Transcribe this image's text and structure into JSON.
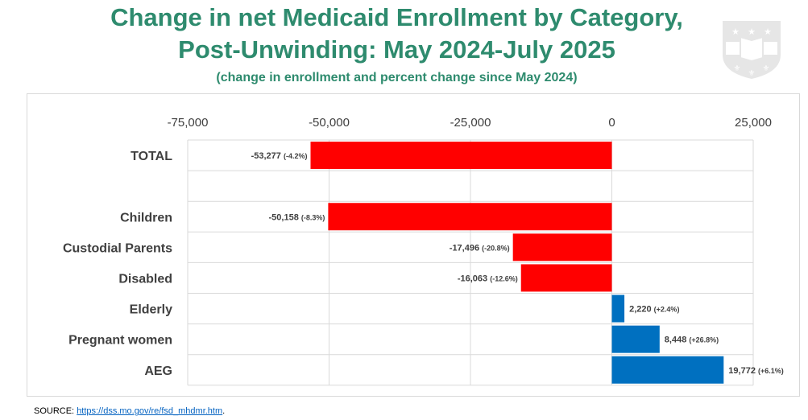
{
  "title_line1": "Change in net Medicaid Enrollment by Category,",
  "title_line2": "Post-Unwinding: May 2024-July 2025",
  "subtitle": "(change in enrollment and percent change since May 2024)",
  "source_label": "SOURCE: ",
  "source_link": "https://dss.mo.gov/re/fsd_mhdmr.htm",
  "source_end": ".",
  "colors": {
    "negative": "#ff0000",
    "positive": "#0070c0",
    "title": "#2e8b6e"
  },
  "chart_data": {
    "type": "bar",
    "orientation": "horizontal",
    "title": "Change in net Medicaid Enrollment by Category, Post-Unwinding: May 2024-July 2025",
    "xlim": [
      -75000,
      25000
    ],
    "xticks": [
      -75000,
      -50000,
      -25000,
      0,
      25000
    ],
    "xtick_labels": [
      "-75,000",
      "-50,000",
      "-25,000",
      "0",
      "25,000"
    ],
    "grid": true,
    "categories": [
      "TOTAL",
      "",
      "Children",
      "Custodial Parents",
      "Disabled",
      "Elderly",
      "Pregnant women",
      "AEG"
    ],
    "values": [
      -53277,
      null,
      -50158,
      -17496,
      -16063,
      2220,
      8448,
      19772
    ],
    "value_labels": [
      "-53,277",
      "",
      "-50,158",
      "-17,496",
      "-16,063",
      "2,220",
      "8,448",
      "19,772"
    ],
    "pct_labels": [
      "(-4.2%)",
      "",
      "(-8.3%)",
      "(-20.8%)",
      "(-12.6%)",
      "(+2.4%)",
      "(+26.8%)",
      "(+6.1%)"
    ]
  }
}
